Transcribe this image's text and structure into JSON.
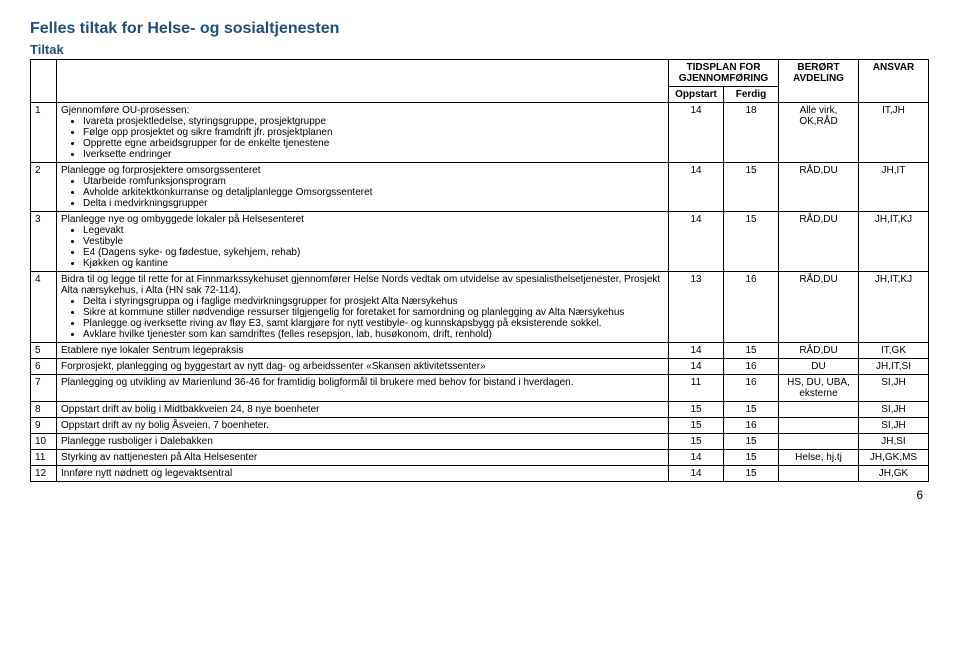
{
  "title": "Felles tiltak for Helse- og sosialtjenesten",
  "subtitle": "Tiltak",
  "headers": {
    "tidsplan": "TIDSPLAN FOR GJENNOMFØRING",
    "oppstart": "Oppstart",
    "ferdig": "Ferdig",
    "berort": "BERØRT AVDELING",
    "ansvar": "ANSVAR"
  },
  "rows": [
    {
      "num": "1",
      "main": "Gjennomføre OU-prosessen:",
      "bullets": [
        "Ivareta prosjektledelse, styringsgruppe, prosjektgruppe",
        "Følge opp prosjektet og sikre framdrift jfr. prosjektplanen",
        "Opprette egne arbeidsgrupper for de enkelte tjenestene",
        "Iverksette endringer"
      ],
      "oppstart": "14",
      "ferdig": "18",
      "avd": "Alle virk, OK,RÅD",
      "ansvar": "IT,JH"
    },
    {
      "num": "2",
      "main": "Planlegge og forprosjektere omsorgssenteret",
      "bullets": [
        "Utarbeide romfunksjonsprogram",
        "Avholde arkitektkonkurranse og detaljplanlegge Omsorgssenteret",
        "Delta i medvirkningsgrupper"
      ],
      "oppstart": "14",
      "ferdig": "15",
      "avd": "RÅD,DU",
      "ansvar": "JH,IT"
    },
    {
      "num": "3",
      "main": "Planlegge nye og ombyggede lokaler på Helsesenteret",
      "bullets": [
        "Legevakt",
        "Vestibyle",
        "E4 (Dagens syke- og fødestue, sykehjem, rehab)",
        "Kjøkken og kantine"
      ],
      "oppstart": "14",
      "ferdig": "15",
      "avd": "RÅD,DU",
      "ansvar": "JH,IT,KJ"
    },
    {
      "num": "4",
      "main": "Bidra til og legge til rette for at Finnmarkssykehuset gjennomfører Helse Nords vedtak om utvidelse av spesialisthelsetjenester, Prosjekt Alta nærsykehus, i Alta (HN sak 72-114).",
      "bullets": [
        "Delta i styringsgruppa og i faglige medvirkningsgrupper for prosjekt Alta Nærsykehus",
        "Sikre at kommune stiller nødvendige ressurser tilgjengelig for foretaket for samordning og planlegging av Alta Nærsykehus",
        "Planlegge og iverksette riving av fløy E3, samt klargjøre for nytt vestibyle- og kunnskapsbygg på eksisterende sokkel.",
        "Avklare hvilke tjenester som kan samdriftes (felles resepsjon, lab, husøkonom, drift, renhold)"
      ],
      "oppstart": "13",
      "ferdig": "16",
      "avd": "RÅD,DU",
      "ansvar": "JH,IT,KJ"
    },
    {
      "num": "5",
      "main": "Etablere nye lokaler Sentrum legepraksis",
      "bullets": [],
      "oppstart": "14",
      "ferdig": "15",
      "avd": "RÅD,DU",
      "ansvar": "IT,GK"
    },
    {
      "num": "6",
      "main": "Forprosjekt, planlegging og byggestart av nytt dag- og arbeidssenter «Skansen aktivitetssenter»",
      "bullets": [],
      "oppstart": "14",
      "ferdig": "16",
      "avd": "DU",
      "ansvar": "JH,IT,SI"
    },
    {
      "num": "7",
      "main": "Planlegging og utvikling av Marienlund 36-46 for framtidig boligformål til brukere med behov for bistand i hverdagen.",
      "bullets": [],
      "oppstart": "11",
      "ferdig": "16",
      "avd": "HS, DU, UBA, eksterne",
      "ansvar": "SI,JH"
    },
    {
      "num": "8",
      "main": "Oppstart drift av bolig i Midtbakkveien 24, 8 nye boenheter",
      "bullets": [],
      "oppstart": "15",
      "ferdig": "15",
      "avd": "",
      "ansvar": "SI,JH"
    },
    {
      "num": "9",
      "main": "Oppstart drift av ny bolig Åsveien, 7 boenheter.",
      "bullets": [],
      "oppstart": "15",
      "ferdig": "16",
      "avd": "",
      "ansvar": "SI,JH"
    },
    {
      "num": "10",
      "main": "Planlegge rusboliger i Dalebakken",
      "bullets": [],
      "oppstart": "15",
      "ferdig": "15",
      "avd": "",
      "ansvar": "JH,SI"
    },
    {
      "num": "11",
      "main": "Styrking av nattjenesten på Alta Helsesenter",
      "bullets": [],
      "oppstart": "14",
      "ferdig": "15",
      "avd": "Helse, hj.tj",
      "ansvar": "JH,GK,MS"
    },
    {
      "num": "12",
      "main": "Innføre nytt nødnett og legevaktsentral",
      "bullets": [],
      "oppstart": "14",
      "ferdig": "15",
      "avd": "",
      "ansvar": "JH,GK"
    }
  ],
  "pageNumber": "6"
}
